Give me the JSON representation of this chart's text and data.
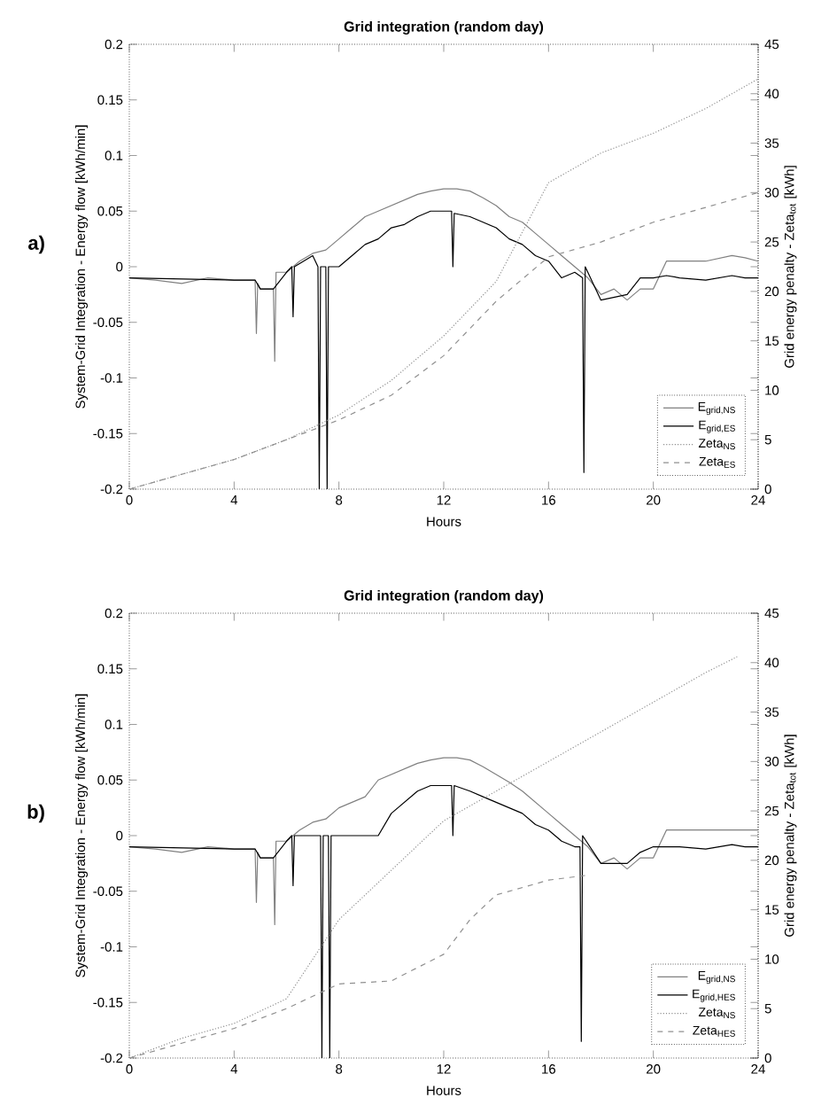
{
  "chart_data": [
    {
      "type": "line",
      "title": "Grid integration (random day)",
      "xlabel": "Hours",
      "ylabel": "System-Grid Integration - Energy flow [kWh/min]",
      "y2label": "Grid energy penalty - Zeta$_{tot}$ [kWh]",
      "annotations": [
        "a)"
      ],
      "xlim": [
        0,
        24
      ],
      "xticks": [
        0,
        4,
        8,
        12,
        16,
        20,
        24
      ],
      "ylim": [
        -0.2,
        0.2
      ],
      "yticks": [
        -0.2,
        -0.15,
        -0.1,
        -0.05,
        0,
        0.05,
        0.1,
        0.15,
        0.2
      ],
      "y2lim": [
        0,
        45
      ],
      "y2ticks": [
        0,
        5,
        10,
        15,
        20,
        25,
        30,
        35,
        40,
        45
      ],
      "legend": "bottom right",
      "marker": "none",
      "series": [
        {
          "name": "E$_{grid,NS}$",
          "color": "#808080",
          "line_style": "solid",
          "x": [
            0,
            1,
            2,
            3,
            4,
            4.8,
            4.85,
            4.9,
            5,
            5.5,
            5.55,
            5.6,
            6,
            6.5,
            7,
            7.5,
            8,
            8.5,
            9,
            9.5,
            10,
            10.5,
            11,
            11.5,
            12,
            12.5,
            13,
            13.5,
            14,
            14.5,
            15,
            15.5,
            16,
            16.5,
            17,
            17.5,
            18,
            18.5,
            19,
            19.5,
            20,
            20.5,
            21,
            22,
            23,
            23.5,
            24
          ],
          "values": [
            -0.01,
            -0.012,
            -0.015,
            -0.01,
            -0.012,
            -0.012,
            -0.06,
            -0.015,
            -0.02,
            -0.02,
            -0.085,
            -0.005,
            -0.005,
            0.005,
            0.012,
            0.015,
            0.025,
            0.035,
            0.045,
            0.05,
            0.055,
            0.06,
            0.065,
            0.068,
            0.07,
            0.07,
            0.068,
            0.062,
            0.055,
            0.045,
            0.04,
            0.03,
            0.02,
            0.01,
            0,
            -0.01,
            -0.025,
            -0.02,
            -0.03,
            -0.02,
            -0.02,
            0.005,
            0.005,
            0.005,
            0.01,
            0.008,
            0.005
          ]
        },
        {
          "name": "E$_{grid,ES}$",
          "color": "#000000",
          "line_style": "solid",
          "x": [
            0,
            4,
            4.8,
            5,
            5.5,
            6,
            6.2,
            6.25,
            6.3,
            7,
            7.2,
            7.25,
            7.3,
            7.5,
            7.55,
            7.6,
            8,
            8.5,
            9,
            9.5,
            10,
            10.5,
            11,
            11.5,
            12,
            12.3,
            12.35,
            12.4,
            13,
            13.5,
            14,
            14.5,
            15,
            15.5,
            16,
            16.5,
            17,
            17.3,
            17.35,
            17.4,
            18,
            19,
            19.5,
            20,
            20.5,
            21,
            22,
            23,
            23.5,
            24
          ],
          "values": [
            -0.01,
            -0.012,
            -0.012,
            -0.02,
            -0.02,
            -0.005,
            0,
            -0.045,
            0,
            0.01,
            0,
            -0.2,
            0,
            0,
            -0.2,
            0,
            0,
            0.01,
            0.02,
            0.025,
            0.035,
            0.038,
            0.045,
            0.05,
            0.05,
            0.05,
            0,
            0.048,
            0.045,
            0.04,
            0.035,
            0.025,
            0.02,
            0.01,
            0.005,
            -0.01,
            -0.005,
            -0.01,
            -0.185,
            0,
            -0.03,
            -0.025,
            -0.01,
            -0.01,
            -0.008,
            -0.01,
            -0.012,
            -0.008,
            -0.01,
            -0.01
          ]
        },
        {
          "name": "Zeta$_{NS}$",
          "color": "#909090",
          "line_style": "dotted",
          "axis": "y2",
          "x": [
            0,
            2,
            4,
            6,
            8,
            10,
            12,
            14,
            16,
            18,
            20,
            22,
            24
          ],
          "values": [
            0,
            1.5,
            3,
            5,
            7.5,
            11,
            15.5,
            21,
            31,
            34,
            36,
            38.5,
            41.5
          ]
        },
        {
          "name": "Zeta$_{ES}$",
          "color": "#909090",
          "line_style": "dashed",
          "axis": "y2",
          "x": [
            0,
            2,
            4,
            6,
            8,
            10,
            12,
            14,
            16,
            18,
            20,
            22,
            24
          ],
          "values": [
            0,
            1.5,
            3,
            5,
            7,
            9.5,
            13.5,
            19,
            23.5,
            25,
            27,
            28.5,
            30
          ]
        }
      ]
    },
    {
      "type": "line",
      "title": "Grid integration (random day)",
      "xlabel": "Hours",
      "ylabel": "System-Grid Integration - Energy flow [kWh/min]",
      "y2label": "Grid energy penalty - Zeta$_{tot}$ [kWh]",
      "annotations": [
        "b)"
      ],
      "xlim": [
        0,
        24
      ],
      "xticks": [
        0,
        4,
        8,
        12,
        16,
        20,
        24
      ],
      "ylim": [
        -0.2,
        0.2
      ],
      "yticks": [
        -0.2,
        -0.15,
        -0.1,
        -0.05,
        0,
        0.05,
        0.1,
        0.15,
        0.2
      ],
      "y2lim": [
        0,
        45
      ],
      "y2ticks": [
        0,
        5,
        10,
        15,
        20,
        25,
        30,
        35,
        40,
        45
      ],
      "legend": "bottom right",
      "marker": "none",
      "series": [
        {
          "name": "E$_{grid,NS}$",
          "color": "#808080",
          "line_style": "solid",
          "x": [
            0,
            1,
            2,
            3,
            4,
            4.8,
            4.85,
            4.9,
            5,
            5.5,
            5.55,
            5.6,
            6,
            6.5,
            7,
            7.5,
            8,
            8.5,
            9,
            9.5,
            10,
            10.5,
            11,
            11.5,
            12,
            12.5,
            13,
            13.5,
            14,
            14.5,
            15,
            15.5,
            16,
            16.5,
            17,
            17.5,
            18,
            18.5,
            19,
            19.5,
            20,
            20.5,
            21,
            22,
            23,
            23.5,
            24
          ],
          "values": [
            -0.01,
            -0.012,
            -0.015,
            -0.01,
            -0.012,
            -0.012,
            -0.06,
            -0.015,
            -0.02,
            -0.02,
            -0.08,
            -0.005,
            -0.005,
            0.005,
            0.012,
            0.015,
            0.025,
            0.03,
            0.035,
            0.05,
            0.055,
            0.06,
            0.065,
            0.068,
            0.07,
            0.07,
            0.068,
            0.062,
            0.055,
            0.048,
            0.04,
            0.03,
            0.02,
            0.01,
            0,
            -0.01,
            -0.025,
            -0.02,
            -0.03,
            -0.02,
            -0.02,
            0.005,
            0.005,
            0.005,
            0.005,
            0.005,
            0.005
          ]
        },
        {
          "name": "E$_{grid,HES}$",
          "color": "#000000",
          "line_style": "solid",
          "x": [
            0,
            4,
            4.8,
            5,
            5.5,
            6,
            6.2,
            6.25,
            6.3,
            6.5,
            7.3,
            7.35,
            7.4,
            7.6,
            7.65,
            7.7,
            8,
            9,
            9.5,
            10,
            10.5,
            11,
            11.5,
            12,
            12.3,
            12.35,
            12.4,
            13,
            13.5,
            14,
            14.5,
            15,
            15.5,
            16,
            16.5,
            17,
            17.2,
            17.25,
            17.3,
            18,
            19,
            19.5,
            20,
            20.5,
            21,
            22,
            23,
            23.5,
            24
          ],
          "values": [
            -0.01,
            -0.012,
            -0.012,
            -0.02,
            -0.02,
            -0.005,
            0,
            -0.045,
            0,
            0,
            0,
            -0.2,
            0,
            0,
            -0.2,
            0,
            0,
            0,
            0,
            0.02,
            0.03,
            0.04,
            0.045,
            0.045,
            0.045,
            0,
            0.045,
            0.04,
            0.035,
            0.03,
            0.025,
            0.02,
            0.01,
            0.005,
            -0.005,
            -0.01,
            -0.01,
            -0.185,
            0,
            -0.025,
            -0.025,
            -0.015,
            -0.01,
            -0.01,
            -0.01,
            -0.012,
            -0.008,
            -0.01,
            -0.01
          ]
        },
        {
          "name": "Zeta$_{NS}$",
          "color": "#909090",
          "line_style": "dotted",
          "axis": "y2",
          "x": [
            0,
            2,
            4,
            6,
            8,
            10,
            12,
            14,
            16,
            18,
            20,
            22,
            23.2
          ],
          "values": [
            0,
            2,
            3.5,
            6,
            14,
            19,
            24,
            27,
            30,
            33,
            36,
            39,
            40.6
          ]
        },
        {
          "name": "Zeta$_{HES}$",
          "color": "#909090",
          "line_style": "dashed",
          "axis": "y2",
          "x": [
            0,
            2,
            4,
            6,
            8,
            10,
            12,
            13,
            14,
            16,
            17.5
          ],
          "values": [
            0,
            1.5,
            3,
            5,
            7.5,
            7.8,
            10.5,
            14,
            16.5,
            18,
            18.5
          ]
        }
      ]
    }
  ]
}
